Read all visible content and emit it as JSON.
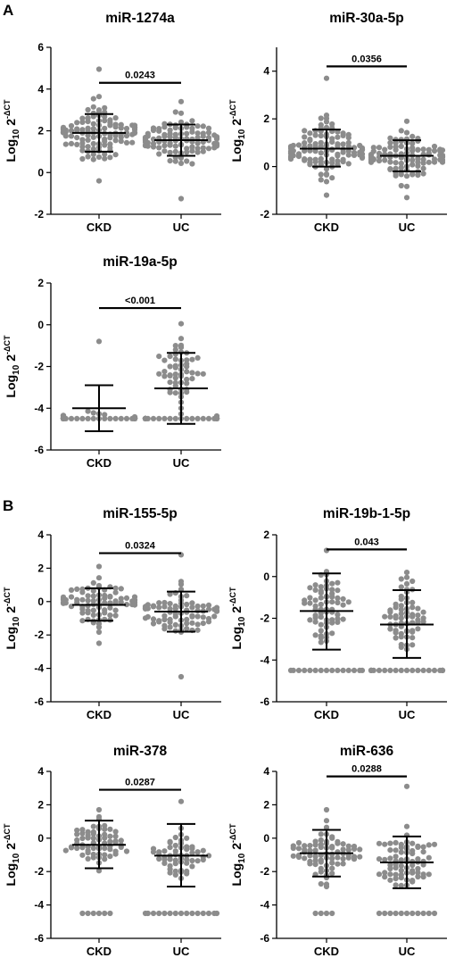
{
  "panel_labels": [
    "A",
    "B"
  ],
  "y_axis_label": {
    "base": "Log",
    "sub": "10",
    "main": " 2",
    "sup": "-ΔCT"
  },
  "chart_data": [
    {
      "type": "scatter",
      "title": "miR-1274a",
      "categories": [
        "CKD",
        "UC"
      ],
      "ylim": [
        -2,
        6
      ],
      "yticks": [
        -2,
        0,
        2,
        4,
        6
      ],
      "summary": [
        {
          "mean": 1.9,
          "sd_low": 1.0,
          "sd_high": 2.8
        },
        {
          "mean": 1.55,
          "sd_low": 0.8,
          "sd_high": 2.3
        }
      ],
      "bracket": {
        "label": "0.0243",
        "level": 4.3
      },
      "groups": [
        {
          "n": 110,
          "min": -0.4,
          "max": 4.95,
          "center": 1.9,
          "spread": 0.85
        },
        {
          "n": 100,
          "min": -1.25,
          "max": 3.4,
          "center": 1.55,
          "spread": 0.7
        }
      ]
    },
    {
      "type": "scatter",
      "title": "miR-30a-5p",
      "categories": [
        "CKD",
        "UC"
      ],
      "ylim": [
        -2,
        5
      ],
      "yticks": [
        -2,
        0,
        2,
        4
      ],
      "summary": [
        {
          "mean": 0.75,
          "sd_low": 0.0,
          "sd_high": 1.55
        },
        {
          "mean": 0.45,
          "sd_low": -0.2,
          "sd_high": 1.1
        }
      ],
      "bracket": {
        "label": "0.0356",
        "level": 4.2
      },
      "groups": [
        {
          "n": 110,
          "min": -1.2,
          "max": 3.7,
          "center": 0.75,
          "spread": 0.8
        },
        {
          "n": 100,
          "min": -1.3,
          "max": 1.9,
          "center": 0.45,
          "spread": 0.65
        }
      ]
    },
    {
      "type": "scatter",
      "title": "miR-19a-5p",
      "categories": [
        "CKD",
        "UC"
      ],
      "ylim": [
        -6,
        2
      ],
      "yticks": [
        -6,
        -4,
        -2,
        0,
        2
      ],
      "summary": [
        {
          "mean": -4.0,
          "sd_low": -5.1,
          "sd_high": -2.9
        },
        {
          "mean": -3.05,
          "sd_low": -4.75,
          "sd_high": -1.35
        }
      ],
      "bracket": {
        "label": "<0.001",
        "level": 0.8
      },
      "groups": [
        {
          "n": 60,
          "min": -4.5,
          "max": -0.8,
          "center": -4.5,
          "spread": 0.3,
          "floor": -4.5,
          "floor_n": 40
        },
        {
          "n": 95,
          "min": -4.5,
          "max": 0.05,
          "center": -2.5,
          "spread": 1.3,
          "floor": -4.5,
          "floor_n": 40
        }
      ]
    },
    {
      "type": "scatter",
      "title": "miR-155-5p",
      "categories": [
        "CKD",
        "UC"
      ],
      "ylim": [
        -6,
        4
      ],
      "yticks": [
        -6,
        -4,
        -2,
        0,
        2,
        4
      ],
      "summary": [
        {
          "mean": -0.2,
          "sd_low": -1.15,
          "sd_high": 0.8
        },
        {
          "mean": -0.6,
          "sd_low": -1.8,
          "sd_high": 0.6
        }
      ],
      "bracket": {
        "label": "0.0324",
        "level": 2.9
      },
      "groups": [
        {
          "n": 80,
          "min": -2.5,
          "max": 2.1,
          "center": -0.2,
          "spread": 0.9
        },
        {
          "n": 80,
          "min": -4.5,
          "max": 2.8,
          "center": -0.6,
          "spread": 1.0
        }
      ]
    },
    {
      "type": "scatter",
      "title": "miR-19b-1-5p",
      "categories": [
        "CKD",
        "UC"
      ],
      "ylim": [
        -6,
        2
      ],
      "yticks": [
        -6,
        -4,
        -2,
        0,
        2
      ],
      "summary": [
        {
          "mean": -1.65,
          "sd_low": -3.5,
          "sd_high": 0.15
        },
        {
          "mean": -2.3,
          "sd_low": -3.9,
          "sd_high": -0.65
        }
      ],
      "bracket": {
        "label": "0.043",
        "level": 1.3
      },
      "groups": [
        {
          "n": 80,
          "min": -4.5,
          "max": 1.25,
          "center": -1.4,
          "spread": 1.3,
          "floor": -4.5,
          "floor_n": 14
        },
        {
          "n": 80,
          "min": -4.5,
          "max": 0.2,
          "center": -1.8,
          "spread": 1.1,
          "floor": -4.5,
          "floor_n": 18
        }
      ]
    },
    {
      "type": "scatter",
      "title": "miR-378",
      "categories": [
        "CKD",
        "UC"
      ],
      "ylim": [
        -6,
        4
      ],
      "yticks": [
        -6,
        -4,
        -2,
        0,
        2,
        4
      ],
      "summary": [
        {
          "mean": -0.4,
          "sd_low": -1.8,
          "sd_high": 1.05
        },
        {
          "mean": -1.05,
          "sd_low": -2.9,
          "sd_high": 0.85
        }
      ],
      "bracket": {
        "label": "0.0287",
        "level": 2.9
      },
      "groups": [
        {
          "n": 70,
          "min": -4.5,
          "max": 1.7,
          "center": -0.3,
          "spread": 0.9,
          "floor": -4.5,
          "floor_n": 5
        },
        {
          "n": 70,
          "min": -4.5,
          "max": 2.2,
          "center": -0.9,
          "spread": 1.1,
          "floor": -4.5,
          "floor_n": 14
        }
      ]
    },
    {
      "type": "scatter",
      "title": "miR-636",
      "categories": [
        "CKD",
        "UC"
      ],
      "ylim": [
        -6,
        4
      ],
      "yticks": [
        -6,
        -4,
        -2,
        0,
        2,
        4
      ],
      "summary": [
        {
          "mean": -0.9,
          "sd_low": -2.3,
          "sd_high": 0.5
        },
        {
          "mean": -1.45,
          "sd_low": -3.0,
          "sd_high": 0.1
        }
      ],
      "bracket": {
        "label": "0.0288",
        "level": 3.7
      },
      "groups": [
        {
          "n": 80,
          "min": -4.5,
          "max": 1.7,
          "center": -0.9,
          "spread": 1.0,
          "floor": -4.5,
          "floor_n": 3
        },
        {
          "n": 80,
          "min": -4.5,
          "max": 3.1,
          "center": -1.45,
          "spread": 1.1,
          "floor": -4.5,
          "floor_n": 10
        }
      ]
    }
  ]
}
